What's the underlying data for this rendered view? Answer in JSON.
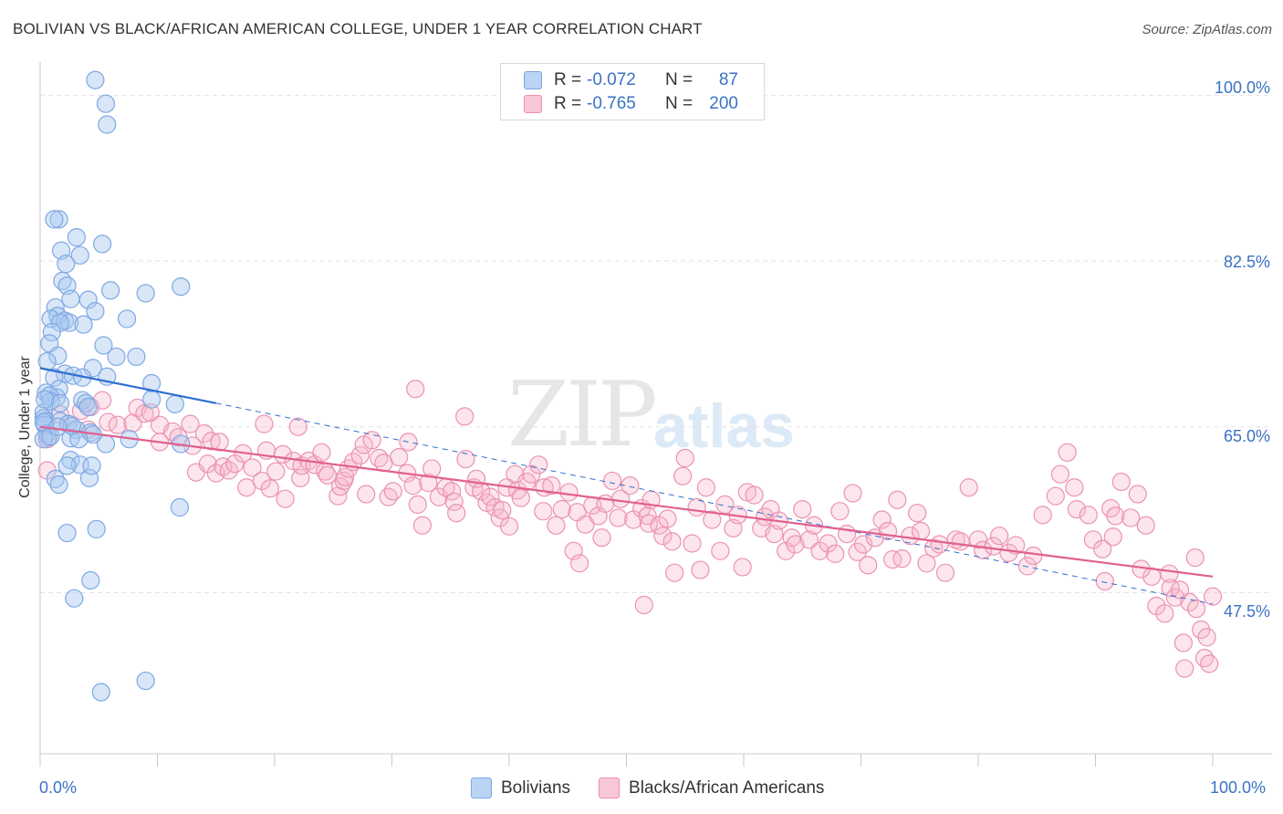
{
  "header": {
    "title": "BOLIVIAN VS BLACK/AFRICAN AMERICAN COLLEGE, UNDER 1 YEAR CORRELATION CHART",
    "source": "Source: ZipAtlas.com"
  },
  "watermark": {
    "zip": "ZIP",
    "atlas": "atlas"
  },
  "colors": {
    "bolivians": "#a9c8f0",
    "bolivians_line": "#2f6fd0",
    "blacks": "#f6b4c9",
    "blacks_line": "#e0608e",
    "tick_text": "#3b72c4"
  },
  "legend": {
    "rows": [
      {
        "r_label": "R =",
        "r_value": "-0.072",
        "n_label": "N =",
        "n_value": "87"
      },
      {
        "r_label": "R =",
        "r_value": "-0.765",
        "n_label": "N =",
        "n_value": "200"
      }
    ],
    "bottom": [
      "Bolivians",
      "Blacks/African Americans"
    ]
  },
  "chart_data": {
    "type": "scatter",
    "title": "BOLIVIAN VS BLACK/AFRICAN AMERICAN COLLEGE, UNDER 1 YEAR CORRELATION CHART",
    "xlabel": "",
    "ylabel": "College, Under 1 year",
    "xlim": [
      0,
      100
    ],
    "ylim": [
      30.5,
      103.5
    ],
    "x_ticks": [
      "0.0%",
      "100.0%"
    ],
    "y_ticks": [
      {
        "value": 47.5,
        "label": "47.5%"
      },
      {
        "value": 65.0,
        "label": "65.0%"
      },
      {
        "value": 82.5,
        "label": "82.5%"
      },
      {
        "value": 100.0,
        "label": "100.0%"
      }
    ],
    "grid": true,
    "legend_position": "top-center",
    "series": [
      {
        "name": "Bolivians",
        "trend": {
          "x0": 0,
          "y0": 71.2,
          "x1": 15,
          "y1": 67.5,
          "extended_dashed_to": {
            "x": 100,
            "y": 46.3
          }
        },
        "points": [
          [
            4.7,
            101.6
          ],
          [
            5.6,
            99.1
          ],
          [
            1.6,
            86.9
          ],
          [
            3.1,
            85.0
          ],
          [
            1.8,
            83.6
          ],
          [
            5.3,
            84.3
          ],
          [
            3.4,
            83.1
          ],
          [
            2.2,
            82.2
          ],
          [
            1.9,
            80.4
          ],
          [
            2.3,
            79.9
          ],
          [
            6.0,
            79.4
          ],
          [
            9.0,
            79.1
          ],
          [
            12.0,
            79.8
          ],
          [
            2.6,
            78.5
          ],
          [
            4.1,
            78.4
          ],
          [
            1.3,
            77.6
          ],
          [
            4.7,
            77.2
          ],
          [
            1.5,
            76.7
          ],
          [
            0.9,
            76.4
          ],
          [
            2.1,
            76.2
          ],
          [
            2.5,
            76.0
          ],
          [
            7.4,
            76.4
          ],
          [
            1.7,
            76.0
          ],
          [
            3.7,
            75.8
          ],
          [
            1.0,
            75.0
          ],
          [
            0.8,
            73.8
          ],
          [
            5.4,
            73.6
          ],
          [
            1.5,
            72.5
          ],
          [
            6.5,
            72.4
          ],
          [
            8.2,
            72.4
          ],
          [
            0.6,
            71.9
          ],
          [
            4.5,
            71.2
          ],
          [
            2.1,
            70.6
          ],
          [
            1.2,
            70.2
          ],
          [
            2.8,
            70.4
          ],
          [
            3.6,
            70.2
          ],
          [
            5.7,
            70.3
          ],
          [
            9.5,
            69.6
          ],
          [
            1.6,
            69.0
          ],
          [
            0.5,
            68.6
          ],
          [
            1.4,
            68.1
          ],
          [
            0.8,
            68.3
          ],
          [
            3.6,
            67.8
          ],
          [
            9.5,
            67.9
          ],
          [
            11.5,
            67.4
          ],
          [
            3.9,
            67.5
          ],
          [
            4.1,
            67.1
          ],
          [
            0.3,
            66.5
          ],
          [
            0.3,
            65.9
          ],
          [
            0.5,
            65.6
          ],
          [
            1.7,
            65.6
          ],
          [
            0.4,
            65.2
          ],
          [
            2.4,
            65.3
          ],
          [
            3.1,
            64.7
          ],
          [
            0.6,
            64.3
          ],
          [
            4.3,
            64.4
          ],
          [
            4.5,
            64.2
          ],
          [
            0.7,
            63.9
          ],
          [
            2.6,
            63.8
          ],
          [
            3.3,
            63.7
          ],
          [
            5.6,
            63.2
          ],
          [
            7.6,
            63.7
          ],
          [
            12.0,
            63.2
          ],
          [
            0.3,
            63.7
          ],
          [
            2.6,
            61.5
          ],
          [
            3.4,
            61.0
          ],
          [
            2.3,
            60.9
          ],
          [
            1.3,
            59.5
          ],
          [
            1.6,
            58.9
          ],
          [
            4.2,
            59.6
          ],
          [
            4.4,
            60.9
          ],
          [
            11.9,
            56.5
          ],
          [
            4.8,
            54.2
          ],
          [
            2.3,
            53.8
          ],
          [
            4.3,
            48.8
          ],
          [
            2.9,
            46.9
          ],
          [
            5.2,
            37.0
          ],
          [
            9.0,
            38.2
          ],
          [
            5.7,
            96.9
          ],
          [
            1.2,
            86.9
          ],
          [
            0.9,
            67.7
          ],
          [
            1.7,
            67.5
          ],
          [
            0.4,
            67.9
          ],
          [
            2.7,
            65.1
          ],
          [
            0.3,
            65.5
          ],
          [
            0.9,
            64.0
          ],
          [
            1.5,
            65.0
          ]
        ]
      },
      {
        "name": "Blacks/African Americans",
        "trend": {
          "x0": 0,
          "y0": 65.0,
          "x1": 100,
          "y1": 49.2
        },
        "points": [
          [
            0.6,
            63.7
          ],
          [
            0.6,
            60.4
          ],
          [
            1.7,
            66.3
          ],
          [
            2.4,
            65.3
          ],
          [
            3.5,
            66.7
          ],
          [
            4.3,
            67.1
          ],
          [
            4.1,
            64.7
          ],
          [
            5.3,
            67.8
          ],
          [
            5.8,
            65.5
          ],
          [
            6.6,
            65.2
          ],
          [
            7.9,
            65.4
          ],
          [
            8.3,
            67.0
          ],
          [
            8.9,
            66.4
          ],
          [
            9.4,
            66.5
          ],
          [
            10.2,
            65.2
          ],
          [
            10.2,
            63.4
          ],
          [
            11.3,
            64.5
          ],
          [
            11.8,
            63.9
          ],
          [
            12.8,
            65.3
          ],
          [
            13.0,
            63.0
          ],
          [
            13.3,
            60.2
          ],
          [
            14.0,
            64.3
          ],
          [
            14.3,
            61.1
          ],
          [
            14.6,
            63.5
          ],
          [
            15.0,
            60.1
          ],
          [
            15.3,
            63.4
          ],
          [
            15.6,
            60.8
          ],
          [
            16.1,
            60.4
          ],
          [
            16.6,
            61.1
          ],
          [
            17.3,
            62.2
          ],
          [
            17.6,
            58.6
          ],
          [
            18.1,
            60.7
          ],
          [
            18.9,
            59.3
          ],
          [
            19.1,
            65.3
          ],
          [
            19.3,
            62.5
          ],
          [
            19.6,
            58.5
          ],
          [
            20.1,
            60.3
          ],
          [
            20.7,
            62.1
          ],
          [
            20.9,
            57.4
          ],
          [
            21.6,
            61.4
          ],
          [
            22.2,
            59.6
          ],
          [
            22.3,
            60.9
          ],
          [
            22.9,
            61.4
          ],
          [
            23.4,
            61.0
          ],
          [
            24.0,
            62.3
          ],
          [
            24.3,
            60.3
          ],
          [
            24.5,
            59.9
          ],
          [
            25.4,
            57.7
          ],
          [
            25.6,
            58.7
          ],
          [
            25.9,
            59.3
          ],
          [
            26.0,
            59.7
          ],
          [
            26.3,
            60.6
          ],
          [
            26.7,
            61.3
          ],
          [
            27.3,
            62.0
          ],
          [
            27.6,
            63.1
          ],
          [
            27.8,
            57.9
          ],
          [
            28.3,
            63.6
          ],
          [
            28.9,
            61.7
          ],
          [
            29.3,
            61.2
          ],
          [
            29.7,
            57.6
          ],
          [
            30.1,
            58.2
          ],
          [
            30.6,
            61.8
          ],
          [
            31.3,
            60.1
          ],
          [
            31.4,
            63.4
          ],
          [
            31.8,
            58.8
          ],
          [
            32.2,
            56.8
          ],
          [
            32.6,
            54.6
          ],
          [
            33.1,
            59.1
          ],
          [
            33.4,
            60.6
          ],
          [
            34.0,
            57.6
          ],
          [
            34.6,
            58.6
          ],
          [
            35.1,
            58.2
          ],
          [
            35.3,
            57.1
          ],
          [
            35.5,
            55.9
          ],
          [
            36.2,
            66.1
          ],
          [
            36.3,
            61.6
          ],
          [
            37.0,
            58.6
          ],
          [
            37.2,
            59.5
          ],
          [
            37.6,
            58.2
          ],
          [
            38.1,
            57.0
          ],
          [
            38.4,
            57.6
          ],
          [
            38.8,
            56.5
          ],
          [
            39.2,
            55.4
          ],
          [
            39.4,
            56.2
          ],
          [
            39.8,
            58.6
          ],
          [
            40.0,
            54.5
          ],
          [
            40.5,
            60.0
          ],
          [
            40.7,
            58.3
          ],
          [
            41.0,
            57.5
          ],
          [
            41.5,
            59.2
          ],
          [
            41.9,
            60.0
          ],
          [
            42.5,
            61.0
          ],
          [
            42.9,
            56.1
          ],
          [
            43.0,
            58.6
          ],
          [
            43.6,
            58.8
          ],
          [
            44.0,
            54.6
          ],
          [
            44.5,
            56.3
          ],
          [
            45.1,
            58.1
          ],
          [
            45.5,
            51.9
          ],
          [
            45.8,
            56.0
          ],
          [
            46.0,
            50.6
          ],
          [
            46.5,
            54.7
          ],
          [
            47.1,
            56.7
          ],
          [
            47.6,
            55.6
          ],
          [
            47.9,
            53.3
          ],
          [
            48.2,
            56.9
          ],
          [
            48.8,
            59.3
          ],
          [
            49.3,
            55.4
          ],
          [
            49.5,
            57.4
          ],
          [
            50.3,
            58.8
          ],
          [
            50.6,
            55.2
          ],
          [
            51.3,
            56.4
          ],
          [
            51.8,
            55.6
          ],
          [
            51.9,
            54.8
          ],
          [
            52.1,
            57.3
          ],
          [
            52.8,
            54.6
          ],
          [
            53.1,
            53.5
          ],
          [
            53.5,
            55.3
          ],
          [
            53.9,
            52.9
          ],
          [
            54.1,
            49.6
          ],
          [
            54.8,
            59.8
          ],
          [
            55.0,
            61.7
          ],
          [
            55.6,
            52.7
          ],
          [
            56.0,
            56.5
          ],
          [
            56.3,
            49.9
          ],
          [
            56.8,
            58.6
          ],
          [
            57.3,
            55.2
          ],
          [
            58.0,
            51.9
          ],
          [
            58.4,
            56.8
          ],
          [
            59.1,
            54.3
          ],
          [
            59.5,
            55.7
          ],
          [
            59.9,
            50.2
          ],
          [
            60.3,
            58.1
          ],
          [
            60.9,
            57.8
          ],
          [
            61.5,
            54.3
          ],
          [
            61.8,
            55.5
          ],
          [
            62.3,
            56.3
          ],
          [
            62.6,
            53.7
          ],
          [
            63.0,
            55.1
          ],
          [
            63.6,
            51.9
          ],
          [
            64.1,
            53.3
          ],
          [
            64.4,
            52.6
          ],
          [
            65.0,
            56.3
          ],
          [
            65.6,
            53.1
          ],
          [
            66.0,
            54.6
          ],
          [
            66.5,
            51.9
          ],
          [
            67.2,
            52.7
          ],
          [
            67.8,
            51.6
          ],
          [
            68.2,
            56.1
          ],
          [
            68.8,
            53.7
          ],
          [
            69.3,
            58.0
          ],
          [
            69.7,
            51.8
          ],
          [
            70.2,
            52.6
          ],
          [
            70.6,
            50.4
          ],
          [
            71.2,
            53.3
          ],
          [
            71.8,
            55.2
          ],
          [
            72.3,
            54.0
          ],
          [
            72.7,
            51.0
          ],
          [
            73.1,
            57.3
          ],
          [
            73.5,
            51.1
          ],
          [
            74.2,
            53.5
          ],
          [
            74.8,
            55.9
          ],
          [
            75.1,
            54.0
          ],
          [
            75.6,
            50.6
          ],
          [
            76.2,
            52.2
          ],
          [
            76.7,
            52.6
          ],
          [
            77.2,
            49.6
          ],
          [
            78.1,
            53.1
          ],
          [
            78.5,
            52.9
          ],
          [
            79.2,
            58.6
          ],
          [
            80.0,
            53.1
          ],
          [
            80.4,
            52.0
          ],
          [
            81.3,
            52.4
          ],
          [
            81.8,
            53.5
          ],
          [
            82.6,
            51.7
          ],
          [
            83.2,
            52.5
          ],
          [
            84.2,
            50.3
          ],
          [
            84.7,
            51.4
          ],
          [
            85.5,
            55.7
          ],
          [
            86.6,
            57.7
          ],
          [
            87.0,
            60.0
          ],
          [
            87.6,
            62.3
          ],
          [
            88.2,
            58.6
          ],
          [
            88.4,
            56.3
          ],
          [
            89.4,
            55.7
          ],
          [
            89.8,
            53.1
          ],
          [
            90.6,
            52.1
          ],
          [
            90.8,
            48.7
          ],
          [
            91.3,
            56.4
          ],
          [
            91.7,
            55.6
          ],
          [
            92.2,
            59.2
          ],
          [
            93.0,
            55.4
          ],
          [
            93.6,
            57.9
          ],
          [
            94.3,
            54.6
          ],
          [
            94.8,
            49.2
          ],
          [
            95.2,
            46.1
          ],
          [
            95.9,
            45.3
          ],
          [
            96.4,
            48.0
          ],
          [
            96.8,
            47.0
          ],
          [
            97.5,
            42.2
          ],
          [
            98.0,
            46.5
          ],
          [
            98.6,
            45.8
          ],
          [
            99.0,
            43.6
          ],
          [
            99.5,
            42.8
          ],
          [
            100.0,
            47.1
          ],
          [
            99.3,
            40.6
          ],
          [
            99.7,
            40.0
          ],
          [
            97.2,
            47.8
          ],
          [
            98.5,
            51.2
          ],
          [
            96.3,
            49.5
          ],
          [
            93.9,
            50.0
          ],
          [
            91.5,
            53.4
          ],
          [
            97.6,
            39.5
          ],
          [
            32.0,
            69.0
          ],
          [
            51.5,
            46.2
          ],
          [
            22.0,
            65.0
          ]
        ]
      }
    ]
  }
}
